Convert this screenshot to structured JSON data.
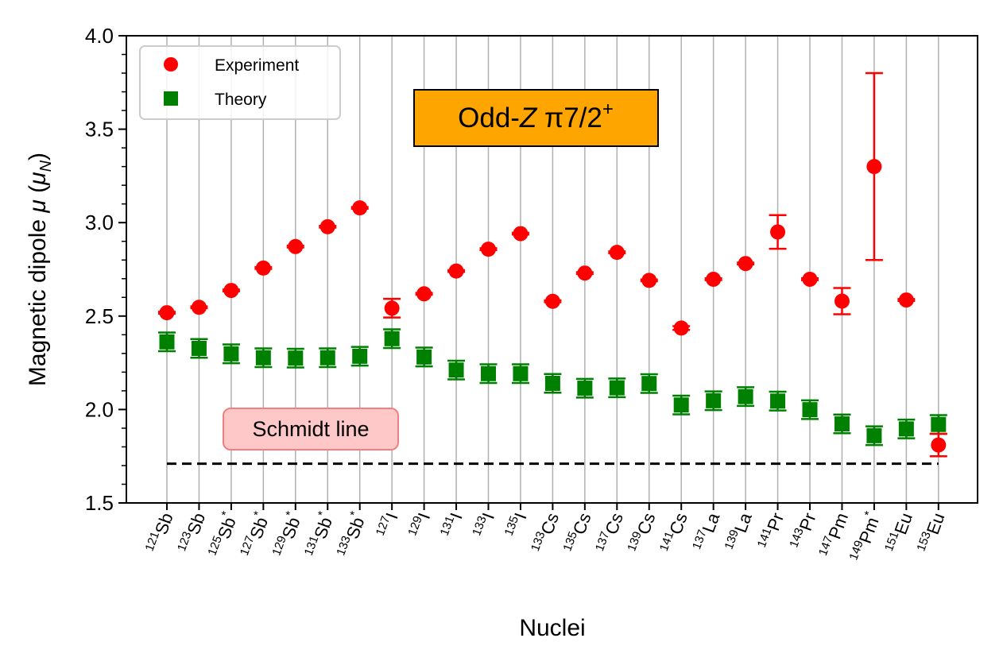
{
  "chart_data": {
    "type": "scatter",
    "title_box": {
      "prefix": "Odd-",
      "italic": "Z",
      "suffix": " π7/2",
      "sup": "+"
    },
    "xlabel": "Nuclei",
    "ylabel": {
      "prefix": "Magnetic dipole ",
      "mu": "μ",
      "open": " (",
      "unit": "μ",
      "unit_sub": "N",
      "close": ")"
    },
    "ylim": [
      1.5,
      4.0
    ],
    "yticks": [
      "1.5",
      "2.0",
      "2.5",
      "3.0",
      "3.5",
      "4.0"
    ],
    "grid": "vertical",
    "legend": {
      "position": "top-left",
      "entries": [
        "Experiment",
        "Theory"
      ]
    },
    "annotation": {
      "text": "Schmidt line",
      "value": 1.71
    },
    "colors": {
      "experiment": "#ff0000",
      "theory": "#008000",
      "title_bg": "#ffa500",
      "schmidt_bg": "#ffc8c8",
      "schmidt_border": "#f08080",
      "grid": "#b0b0b0"
    },
    "nuclei": [
      {
        "mass": "121",
        "sym": "Sb",
        "star": ""
      },
      {
        "mass": "123",
        "sym": "Sb",
        "star": ""
      },
      {
        "mass": "125",
        "sym": "Sb",
        "star": "*"
      },
      {
        "mass": "127",
        "sym": "Sb",
        "star": "*"
      },
      {
        "mass": "129",
        "sym": "Sb",
        "star": "*"
      },
      {
        "mass": "131",
        "sym": "Sb",
        "star": "*"
      },
      {
        "mass": "133",
        "sym": "Sb",
        "star": "*"
      },
      {
        "mass": "127",
        "sym": "I",
        "star": ""
      },
      {
        "mass": "129",
        "sym": "I",
        "star": ""
      },
      {
        "mass": "131",
        "sym": "I",
        "star": ""
      },
      {
        "mass": "133",
        "sym": "I",
        "star": ""
      },
      {
        "mass": "135",
        "sym": "I",
        "star": ""
      },
      {
        "mass": "133",
        "sym": "Cs",
        "star": ""
      },
      {
        "mass": "135",
        "sym": "Cs",
        "star": ""
      },
      {
        "mass": "137",
        "sym": "Cs",
        "star": ""
      },
      {
        "mass": "139",
        "sym": "Cs",
        "star": ""
      },
      {
        "mass": "141",
        "sym": "Cs",
        "star": ""
      },
      {
        "mass": "137",
        "sym": "La",
        "star": ""
      },
      {
        "mass": "139",
        "sym": "La",
        "star": ""
      },
      {
        "mass": "141",
        "sym": "Pr",
        "star": ""
      },
      {
        "mass": "143",
        "sym": "Pr",
        "star": ""
      },
      {
        "mass": "147",
        "sym": "Pm",
        "star": ""
      },
      {
        "mass": "149",
        "sym": "Pm",
        "star": "*"
      },
      {
        "mass": "151",
        "sym": "Eu",
        "star": ""
      },
      {
        "mass": "153",
        "sym": "Eu",
        "star": ""
      }
    ],
    "series": [
      {
        "name": "Experiment",
        "values": [
          2.518,
          2.547,
          2.637,
          2.757,
          2.872,
          2.978,
          3.079,
          2.542,
          2.619,
          2.741,
          2.858,
          2.941,
          2.579,
          2.73,
          2.841,
          2.691,
          2.436,
          2.697,
          2.781,
          2.95,
          2.697,
          2.58,
          3.3,
          2.586,
          1.81
        ],
        "errors": [
          0.005,
          0.005,
          0.005,
          0.005,
          0.005,
          0.005,
          0.005,
          0.05,
          0.005,
          0.005,
          0.005,
          0.005,
          0.005,
          0.005,
          0.005,
          0.005,
          0.01,
          0.005,
          0.005,
          0.09,
          0.005,
          0.07,
          0.5,
          0.005,
          0.06
        ]
      },
      {
        "name": "Theory",
        "values": [
          2.362,
          2.327,
          2.298,
          2.277,
          2.275,
          2.277,
          2.285,
          2.379,
          2.281,
          2.211,
          2.192,
          2.192,
          2.14,
          2.114,
          2.116,
          2.139,
          2.024,
          2.047,
          2.069,
          2.045,
          1.999,
          1.923,
          1.86,
          1.896,
          1.92
        ],
        "errors": [
          0.05,
          0.05,
          0.05,
          0.05,
          0.05,
          0.05,
          0.05,
          0.05,
          0.05,
          0.05,
          0.05,
          0.05,
          0.05,
          0.05,
          0.05,
          0.05,
          0.05,
          0.05,
          0.05,
          0.05,
          0.05,
          0.05,
          0.05,
          0.05,
          0.05
        ]
      }
    ]
  }
}
